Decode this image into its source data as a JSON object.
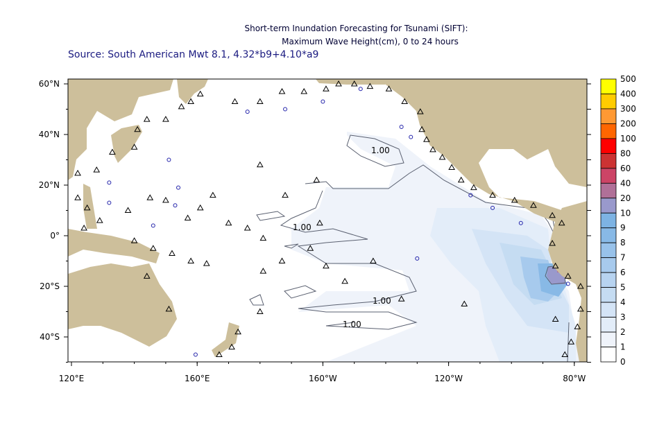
{
  "title": {
    "line1": "Short-term Inundation Forecasting for Tsunami (SIFT):",
    "line2": "Maximum Wave Height(cm), 0 to 24 hours",
    "source": "Source: South American Mwt 8.1, 4.32*b9+4.10*a9"
  },
  "map": {
    "lon_ticks": [
      {
        "lon": 120,
        "label": "120°E"
      },
      {
        "lon": 160,
        "label": "160°E"
      },
      {
        "lon": -160,
        "label": "160°W"
      },
      {
        "lon": -120,
        "label": "120°W"
      },
      {
        "lon": -80,
        "label": "80°W"
      }
    ],
    "lat_ticks": [
      {
        "lat": 60,
        "label": "60°N"
      },
      {
        "lat": 40,
        "label": "40°N"
      },
      {
        "lat": 20,
        "label": "20°N"
      },
      {
        "lat": 0,
        "label": "0°"
      },
      {
        "lat": -20,
        "label": "20°S"
      },
      {
        "lat": -40,
        "label": "40°S"
      }
    ],
    "extent": {
      "lon_min": 119,
      "lon_max": -70.5,
      "lat_min": -50,
      "lat_max": 62
    },
    "contour_labels": [
      "1.00",
      "1.00",
      "1.00",
      "1.00"
    ],
    "land_color": "#cdbf9b",
    "contour_color": "#5a6070",
    "gauges": [
      [
        122,
        24.7
      ],
      [
        128,
        26
      ],
      [
        133,
        33
      ],
      [
        140,
        35
      ],
      [
        141,
        42
      ],
      [
        144,
        46
      ],
      [
        150,
        46
      ],
      [
        155,
        51
      ],
      [
        158,
        53
      ],
      [
        161,
        56
      ],
      [
        172,
        53
      ],
      [
        180,
        53
      ],
      [
        -173,
        57
      ],
      [
        -166,
        57
      ],
      [
        -159,
        58
      ],
      [
        -155,
        60
      ],
      [
        -150,
        60
      ],
      [
        -145,
        59
      ],
      [
        -139,
        58
      ],
      [
        -134,
        53
      ],
      [
        -129,
        49
      ],
      [
        -128.5,
        42
      ],
      [
        -127,
        38
      ],
      [
        -125,
        34
      ],
      [
        -122,
        31
      ],
      [
        -119,
        27
      ],
      [
        -116,
        22
      ],
      [
        -112,
        19
      ],
      [
        -106,
        16
      ],
      [
        -99,
        14
      ],
      [
        -93,
        12
      ],
      [
        -87,
        8
      ],
      [
        -84,
        5
      ],
      [
        -87,
        -3
      ],
      [
        -86,
        -12
      ],
      [
        -82,
        -16
      ],
      [
        -78,
        -20
      ],
      [
        -78,
        -29
      ],
      [
        -79,
        -36
      ],
      [
        -81,
        -42
      ],
      [
        -83,
        -47
      ],
      [
        -86,
        -33
      ],
      [
        -115,
        -27
      ],
      [
        -135,
        -25
      ],
      [
        -144,
        -10
      ],
      [
        -153,
        -18
      ],
      [
        -159,
        -12
      ],
      [
        -173,
        -10
      ],
      [
        -179,
        -14
      ],
      [
        180,
        -30
      ],
      [
        173,
        -38
      ],
      [
        171,
        -44
      ],
      [
        167,
        -47
      ],
      [
        151,
        -29
      ],
      [
        144,
        -16
      ],
      [
        140,
        -2
      ],
      [
        146,
        -5
      ],
      [
        152,
        -7
      ],
      [
        158,
        -10
      ],
      [
        163,
        -11
      ],
      [
        161,
        11
      ],
      [
        165,
        16
      ],
      [
        170,
        5
      ],
      [
        176,
        3
      ],
      [
        -179,
        -1
      ],
      [
        -172,
        16
      ],
      [
        -162,
        22
      ],
      [
        -161,
        5
      ],
      [
        -164,
        -5
      ],
      [
        157,
        7
      ],
      [
        150,
        14
      ],
      [
        145,
        15
      ],
      [
        138,
        10
      ],
      [
        129,
        6
      ],
      [
        124,
        3
      ],
      [
        122,
        15
      ],
      [
        125,
        11
      ],
      [
        180,
        28
      ]
    ],
    "buoys": [
      [
        132,
        21
      ],
      [
        132,
        13
      ],
      [
        151,
        30
      ],
      [
        154,
        19
      ],
      [
        176,
        49
      ],
      [
        -172,
        50
      ],
      [
        -160,
        53
      ],
      [
        -148,
        58
      ],
      [
        -135,
        43
      ],
      [
        -132,
        39
      ],
      [
        -113,
        16
      ],
      [
        -106,
        11
      ],
      [
        -97,
        5
      ],
      [
        -82,
        -19
      ],
      [
        -130,
        -9
      ],
      [
        159.5,
        -47
      ],
      [
        146,
        4
      ],
      [
        153,
        12
      ]
    ]
  },
  "colorbar": {
    "labels": [
      "500",
      "400",
      "300",
      "200",
      "100",
      "80",
      "60",
      "40",
      "20",
      "10",
      "9",
      "8",
      "7",
      "6",
      "5",
      "4",
      "3",
      "2",
      "1",
      "0"
    ],
    "colors": [
      "#ffff00",
      "#ffcc00",
      "#ff9933",
      "#ff6600",
      "#ff0000",
      "#cc3333",
      "#cc4466",
      "#b07098",
      "#9999cc",
      "#7db3e3",
      "#88b9e6",
      "#98c2ea",
      "#a7caed",
      "#b7d3f0",
      "#c5dcf2",
      "#d4e4f6",
      "#e3edf9",
      "#eff3fa",
      "#ffffff"
    ]
  }
}
